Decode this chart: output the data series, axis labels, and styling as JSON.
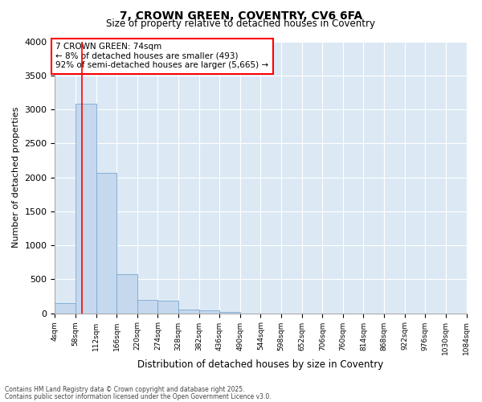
{
  "title": "7, CROWN GREEN, COVENTRY, CV6 6FA",
  "subtitle": "Size of property relative to detached houses in Coventry",
  "xlabel": "Distribution of detached houses by size in Coventry",
  "ylabel": "Number of detached properties",
  "bar_color": "#c5d8ee",
  "bar_edge_color": "#7aa8d0",
  "bg_color": "#dce9f5",
  "property_line_x": 74,
  "annotation_text": "7 CROWN GREEN: 74sqm\n← 8% of detached houses are smaller (493)\n92% of semi-detached houses are larger (5,665) →",
  "footnote1": "Contains HM Land Registry data © Crown copyright and database right 2025.",
  "footnote2": "Contains public sector information licensed under the Open Government Licence v3.0.",
  "bin_edges": [
    4,
    58,
    112,
    166,
    220,
    274,
    328,
    382,
    436,
    490,
    544,
    598,
    652,
    706,
    760,
    814,
    868,
    922,
    976,
    1030,
    1084
  ],
  "bin_counts": [
    150,
    3080,
    2060,
    570,
    200,
    190,
    55,
    45,
    20,
    0,
    0,
    0,
    0,
    0,
    0,
    0,
    0,
    0,
    0,
    0
  ],
  "ylim": [
    0,
    4000
  ],
  "yticks": [
    0,
    500,
    1000,
    1500,
    2000,
    2500,
    3000,
    3500,
    4000
  ]
}
